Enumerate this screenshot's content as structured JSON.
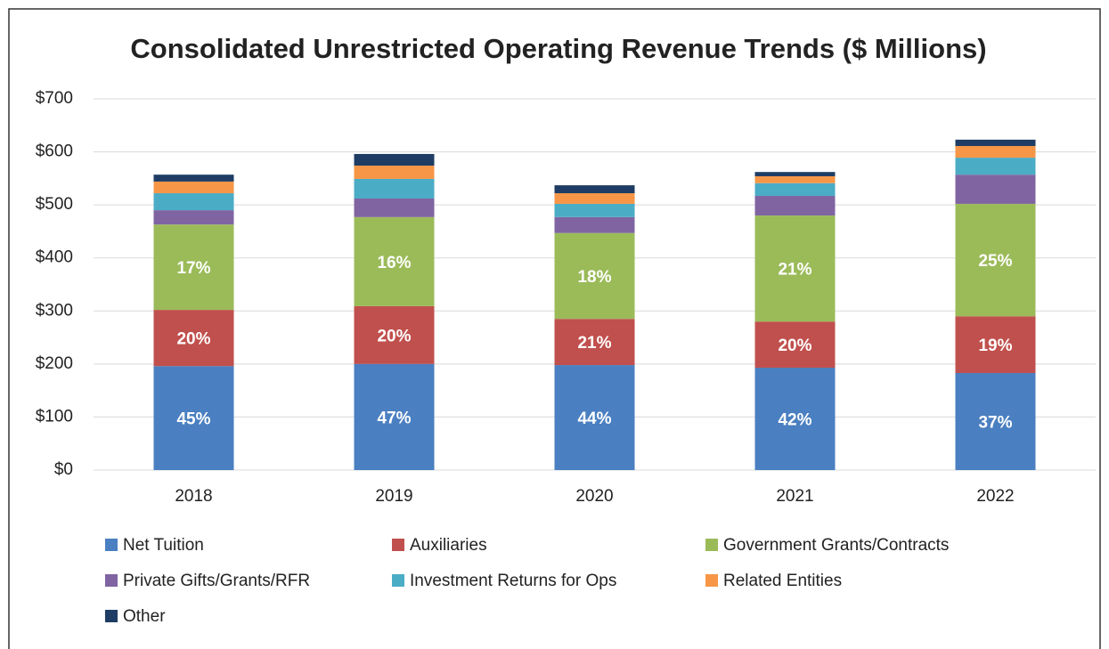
{
  "chart_data": {
    "type": "stacked_bar",
    "title": "Consolidated Unrestricted Operating Revenue Trends ($ Millions)",
    "categories": [
      "2018",
      "2019",
      "2020",
      "2021",
      "2022"
    ],
    "series": [
      {
        "name": "Net Tuition",
        "color": "#4a7fc1",
        "values": [
          196,
          200,
          198,
          193,
          183
        ],
        "percent_labels": [
          "45%",
          "47%",
          "44%",
          "42%",
          "37%"
        ]
      },
      {
        "name": "Auxiliaries",
        "color": "#c0504d",
        "values": [
          106,
          109,
          87,
          87,
          107
        ],
        "percent_labels": [
          "20%",
          "20%",
          "21%",
          "20%",
          "19%"
        ]
      },
      {
        "name": "Government Grants/Contracts",
        "color": "#9bbb59",
        "values": [
          161,
          168,
          162,
          200,
          212
        ],
        "percent_labels": [
          "17%",
          "16%",
          "18%",
          "21%",
          "25%"
        ]
      },
      {
        "name": "Private Gifts/Grants/RFR",
        "color": "#8064a2",
        "values": [
          27,
          35,
          30,
          37,
          55
        ]
      },
      {
        "name": "Investment Returns for Ops",
        "color": "#4bacc6",
        "values": [
          32,
          37,
          25,
          24,
          32
        ]
      },
      {
        "name": "Related Entities",
        "color": "#f79646",
        "values": [
          22,
          25,
          20,
          13,
          22
        ]
      },
      {
        "name": "Other",
        "color": "#1f3d64",
        "values": [
          13,
          22,
          15,
          8,
          12
        ]
      }
    ],
    "ylim": [
      0,
      700
    ],
    "yticks": [
      {
        "value": 0,
        "label": "$0"
      },
      {
        "value": 100,
        "label": "$100"
      },
      {
        "value": 200,
        "label": "$200"
      },
      {
        "value": 300,
        "label": "$300"
      },
      {
        "value": 400,
        "label": "$400"
      },
      {
        "value": 500,
        "label": "$500"
      },
      {
        "value": 600,
        "label": "$600"
      },
      {
        "value": 700,
        "label": "$700"
      }
    ],
    "grid": true
  }
}
